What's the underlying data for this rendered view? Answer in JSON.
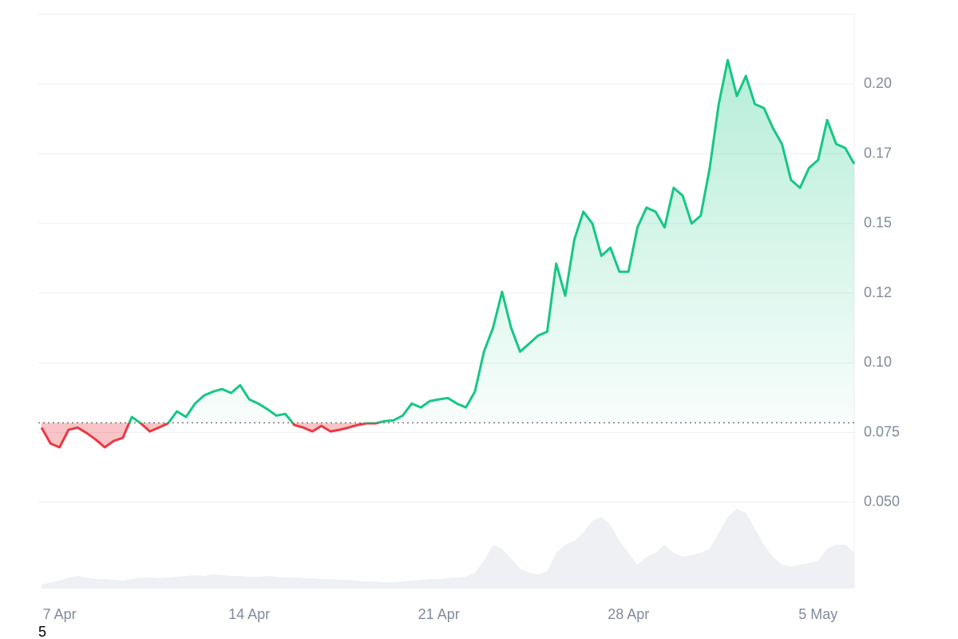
{
  "chart_data": {
    "type": "line",
    "categories": [
      null,
      null,
      "7 Apr",
      null,
      null,
      null,
      null,
      null,
      null,
      null,
      null,
      null,
      null,
      null,
      null,
      null,
      null,
      null,
      null,
      null,
      null,
      null,
      null,
      "14 Apr",
      null,
      null,
      null,
      null,
      null,
      null,
      null,
      null,
      null,
      null,
      null,
      null,
      null,
      null,
      null,
      null,
      null,
      null,
      null,
      null,
      "21 Apr",
      null,
      null,
      null,
      null,
      null,
      null,
      null,
      null,
      null,
      null,
      null,
      null,
      null,
      null,
      null,
      null,
      null,
      null,
      null,
      null,
      "28 Apr",
      null,
      null,
      null,
      null,
      null,
      null,
      null,
      null,
      null,
      null,
      null,
      null,
      null,
      null,
      null,
      null,
      null,
      null,
      null,
      null,
      "5 May",
      null,
      null,
      null,
      null
    ],
    "values": [
      0.0768,
      0.0711,
      0.0697,
      0.076,
      0.0768,
      0.0748,
      0.0725,
      0.0697,
      0.072,
      0.0731,
      0.0806,
      0.0783,
      0.0754,
      0.0768,
      0.0783,
      0.0826,
      0.0806,
      0.0854,
      0.0883,
      0.0897,
      0.0906,
      0.0892,
      0.092,
      0.0869,
      0.0854,
      0.0834,
      0.0811,
      0.0817,
      0.0777,
      0.0768,
      0.0754,
      0.0774,
      0.0754,
      0.076,
      0.0768,
      0.0777,
      0.0783,
      0.0783,
      0.0791,
      0.0794,
      0.0811,
      0.0854,
      0.084,
      0.0863,
      0.0869,
      0.0874,
      0.0854,
      0.084,
      0.0897,
      0.104,
      0.1126,
      0.1255,
      0.1126,
      0.104,
      0.1069,
      0.1098,
      0.1112,
      0.1356,
      0.1241,
      0.1442,
      0.1542,
      0.15,
      0.1384,
      0.1413,
      0.1327,
      0.1327,
      0.1486,
      0.1557,
      0.1542,
      0.1486,
      0.1628,
      0.16,
      0.15,
      0.1528,
      0.1699,
      0.1928,
      0.2086,
      0.1957,
      0.2029,
      0.1928,
      0.1914,
      0.1842,
      0.1785,
      0.1656,
      0.1628,
      0.1699,
      0.1728,
      0.1871,
      0.1785,
      0.1771,
      0.1714
    ],
    "volume": [
      5,
      8,
      10,
      14,
      16,
      14,
      12,
      12,
      11,
      10,
      12,
      14,
      14,
      13,
      14,
      15,
      16,
      17,
      16,
      18,
      17,
      16,
      16,
      15,
      15,
      16,
      15,
      14,
      14,
      13,
      13,
      12,
      12,
      11,
      11,
      10,
      9,
      9,
      8,
      8,
      9,
      10,
      11,
      12,
      12,
      13,
      14,
      15,
      20,
      35,
      55,
      50,
      38,
      25,
      20,
      18,
      22,
      45,
      55,
      60,
      70,
      85,
      90,
      80,
      60,
      45,
      30,
      40,
      45,
      55,
      45,
      40,
      42,
      45,
      50,
      70,
      90,
      100,
      95,
      75,
      55,
      40,
      30,
      28,
      30,
      32,
      35,
      50,
      55,
      55,
      45
    ],
    "baseline": 0.0785,
    "up_color": "#16c784",
    "down_color": "#ea3943",
    "volume_color": "#eef0f4",
    "ylim": [
      0.019,
      0.225
    ],
    "yticks": [
      {
        "value": 0.05,
        "label": "0.050"
      },
      0.075,
      {
        "value": 0.1,
        "label": "0.10"
      },
      {
        "value": 0.125,
        "label": "0.12"
      },
      0.15,
      {
        "value": 0.175,
        "label": "0.17"
      },
      {
        "value": 0.2,
        "label": "0.20"
      }
    ],
    "grid": true,
    "footnote": "5"
  }
}
